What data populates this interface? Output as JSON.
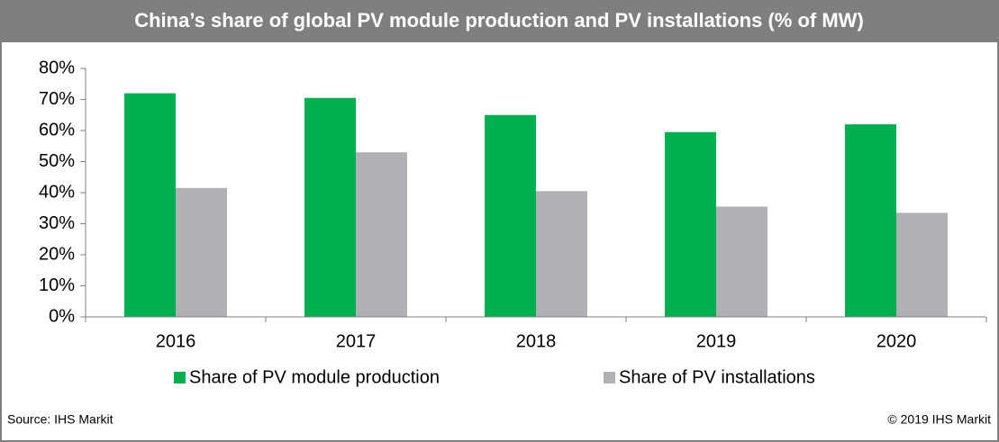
{
  "chart_data": {
    "type": "bar",
    "title": "China’s share of global PV module production and PV installations (% of MW)",
    "categories": [
      "2016",
      "2017",
      "2018",
      "2019",
      "2020"
    ],
    "series": [
      {
        "name": "Share of PV module production",
        "color": "#00b050",
        "values": [
          72,
          70.5,
          65,
          59.5,
          62
        ]
      },
      {
        "name": "Share of PV installations",
        "color": "#b1b1b5",
        "values": [
          41.5,
          53,
          40.5,
          35.5,
          33.5
        ]
      }
    ],
    "ylim": [
      0,
      80
    ],
    "yticks": [
      {
        "value": 0,
        "label": "0%"
      },
      {
        "value": 10,
        "label": "10%"
      },
      {
        "value": 20,
        "label": "20%"
      },
      {
        "value": 30,
        "label": "30%"
      },
      {
        "value": 40,
        "label": "40%"
      },
      {
        "value": 50,
        "label": "50%"
      },
      {
        "value": 60,
        "label": "60%"
      },
      {
        "value": 70,
        "label": "70%"
      },
      {
        "value": 80,
        "label": "80%"
      }
    ],
    "grid": false,
    "source": "Source: IHS Markit",
    "copyright": "© 2019 IHS Markit"
  }
}
